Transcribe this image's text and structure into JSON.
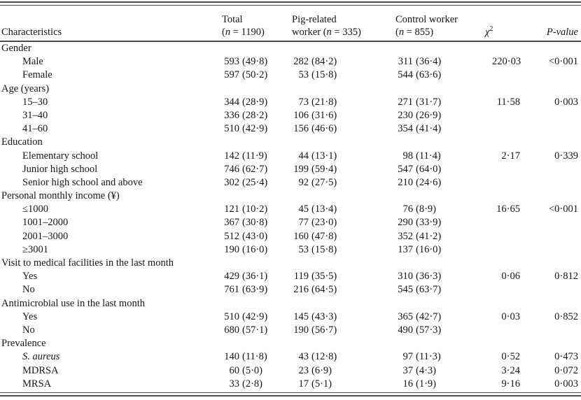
{
  "table": {
    "header": {
      "characteristics": "Characteristics",
      "n_char": "n",
      "total": {
        "line1": "Total",
        "sub_pre": "(",
        "sub_post": " = 1190)"
      },
      "pig": {
        "line1": "Pig-related",
        "sub_pre": "worker (",
        "sub_post": " = 335)"
      },
      "control": {
        "line1": "Control worker",
        "sub_pre": "(",
        "sub_post": " = 855)"
      },
      "chi": {
        "base": "χ",
        "sup": "2"
      },
      "p_value": "P-value"
    },
    "rule_color": "#4c4c4c",
    "sections": [
      {
        "label": "Gender",
        "rows": [
          {
            "label": "Male",
            "total": [
              "593",
              "(49·8)"
            ],
            "pig": [
              "282",
              "(84·2)"
            ],
            "control": [
              "311",
              "(36·4)"
            ],
            "chi2": "220·03",
            "p": "<0·001"
          },
          {
            "label": "Female",
            "total": [
              "597",
              "(50·2)"
            ],
            "pig": [
              "53",
              "(15·8)"
            ],
            "control": [
              "544",
              "(63·6)"
            ],
            "chi2": "",
            "p": ""
          }
        ]
      },
      {
        "label": "Age (years)",
        "rows": [
          {
            "label": "15–30",
            "total": [
              "344",
              "(28·9)"
            ],
            "pig": [
              "73",
              "(21·8)"
            ],
            "control": [
              "271",
              "(31·7)"
            ],
            "chi2": "11·58",
            "p": "0·003"
          },
          {
            "label": "31–40",
            "total": [
              "336",
              "(28·2)"
            ],
            "pig": [
              "106",
              "(31·6)"
            ],
            "control": [
              "230",
              "(26·9)"
            ],
            "chi2": "",
            "p": ""
          },
          {
            "label": "41–60",
            "total": [
              "510",
              "(42·9)"
            ],
            "pig": [
              "156",
              "(46·6)"
            ],
            "control": [
              "354",
              "(41·4)"
            ],
            "chi2": "",
            "p": ""
          }
        ]
      },
      {
        "label": "Education",
        "rows": [
          {
            "label": "Elementary school",
            "total": [
              "142",
              "(11·9)"
            ],
            "pig": [
              "44",
              "(13·1)"
            ],
            "control": [
              "98",
              "(11·4)"
            ],
            "chi2": "2·17",
            "p": "0·339"
          },
          {
            "label": "Junior high school",
            "total": [
              "746",
              "(62·7)"
            ],
            "pig": [
              "199",
              "(59·4)"
            ],
            "control": [
              "547",
              "(64·0)"
            ],
            "chi2": "",
            "p": ""
          },
          {
            "label": "Senior high school and above",
            "total": [
              "302",
              "(25·4)"
            ],
            "pig": [
              "92",
              "(27·5)"
            ],
            "control": [
              "210",
              "(24·6)"
            ],
            "chi2": "",
            "p": ""
          }
        ]
      },
      {
        "label": "Personal monthly income (¥)",
        "rows": [
          {
            "label": "≤1000",
            "total": [
              "121",
              "(10·2)"
            ],
            "pig": [
              "45",
              "(13·4)"
            ],
            "control": [
              "76",
              "(8·9)"
            ],
            "chi2": "16·65",
            "p": "<0·001"
          },
          {
            "label": "1001–2000",
            "total": [
              "367",
              "(30·8)"
            ],
            "pig": [
              "77",
              "(23·0)"
            ],
            "control": [
              "290",
              "(33·9)"
            ],
            "chi2": "",
            "p": ""
          },
          {
            "label": "2001–3000",
            "total": [
              "512",
              "(43·0)"
            ],
            "pig": [
              "160",
              "(47·8)"
            ],
            "control": [
              "352",
              "(41·2)"
            ],
            "chi2": "",
            "p": ""
          },
          {
            "label": "≥3001",
            "total": [
              "190",
              "(16·0)"
            ],
            "pig": [
              "53",
              "(15·8)"
            ],
            "control": [
              "137",
              "(16·0)"
            ],
            "chi2": "",
            "p": ""
          }
        ]
      },
      {
        "label": "Visit to medical facilities in the last month",
        "rows": [
          {
            "label": "Yes",
            "total": [
              "429",
              "(36·1)"
            ],
            "pig": [
              "119",
              "(35·5)"
            ],
            "control": [
              "310",
              "(36·3)"
            ],
            "chi2": "0·06",
            "p": "0·812"
          },
          {
            "label": "No",
            "total": [
              "761",
              "(63·9)"
            ],
            "pig": [
              "216",
              "(64·5)"
            ],
            "control": [
              "545",
              "(63·7)"
            ],
            "chi2": "",
            "p": ""
          }
        ]
      },
      {
        "label": "Antimicrobial use in the last month",
        "rows": [
          {
            "label": "Yes",
            "total": [
              "510",
              "(42·9)"
            ],
            "pig": [
              "145",
              "(43·3)"
            ],
            "control": [
              "365",
              "(42·7)"
            ],
            "chi2": "0·03",
            "p": "0·852"
          },
          {
            "label": "No",
            "total": [
              "680",
              "(57·1)"
            ],
            "pig": [
              "190",
              "(56·7)"
            ],
            "control": [
              "490",
              "(57·3)"
            ],
            "chi2": "",
            "p": ""
          }
        ]
      },
      {
        "label": "Prevalence",
        "rows": [
          {
            "label": "S. aureus",
            "italic": true,
            "total": [
              "140",
              "(11·8)"
            ],
            "pig": [
              "43",
              "(12·8)"
            ],
            "control": [
              "97",
              "(11·3)"
            ],
            "chi2": "0·52",
            "p": "0·473"
          },
          {
            "label": "MDRSA",
            "total": [
              "60",
              "(5·0)"
            ],
            "pig": [
              "23",
              "(6·9)"
            ],
            "control": [
              "37",
              "(4·3)"
            ],
            "chi2": "3·24",
            "p": "0·072"
          },
          {
            "label": "MRSA",
            "total": [
              "33",
              "(2·8)"
            ],
            "pig": [
              "17",
              "(5·1)"
            ],
            "control": [
              "16",
              "(1·9)"
            ],
            "chi2": "9·16",
            "p": "0·003"
          }
        ]
      }
    ]
  }
}
